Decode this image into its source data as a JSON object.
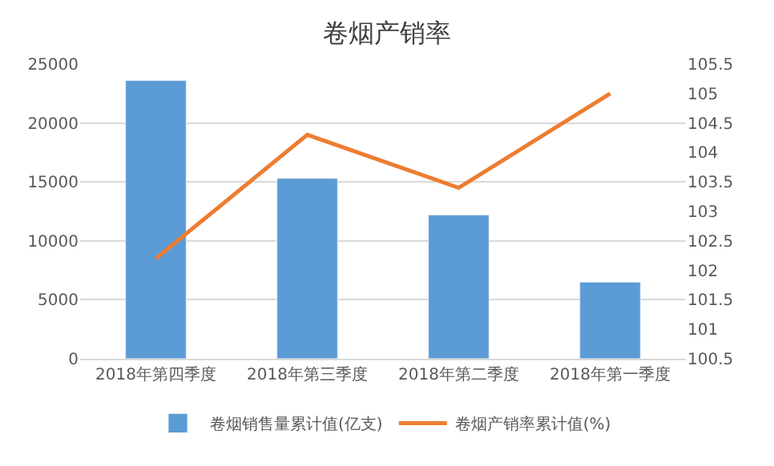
{
  "chart_data": {
    "type": "bar",
    "title": "卷烟产销率",
    "categories": [
      "2018年第四季度",
      "2018年第三季度",
      "2018年第二季度",
      "2018年第一季度"
    ],
    "series": [
      {
        "name": "卷烟销售量累计值(亿支)",
        "color": "#5b9bd5",
        "values": [
          23600,
          15300,
          12200,
          6500
        ]
      },
      {
        "name": "卷烟产销率累计值(%)",
        "color": "#ed7d31",
        "type": "line",
        "axis": "y2",
        "values": [
          102.2,
          104.3,
          103.4,
          105.0
        ]
      }
    ],
    "ylim": [
      0,
      25000
    ],
    "yticks": [
      0,
      5000,
      10000,
      15000,
      20000,
      25000
    ],
    "y2lim": [
      100.5,
      105.5
    ],
    "y2ticks": [
      100.5,
      101,
      101.5,
      102,
      102.5,
      103,
      103.5,
      104,
      104.5,
      105,
      105.5
    ],
    "grid": "y",
    "legend": "bottom",
    "marker": "none",
    "line_style": "solid"
  }
}
